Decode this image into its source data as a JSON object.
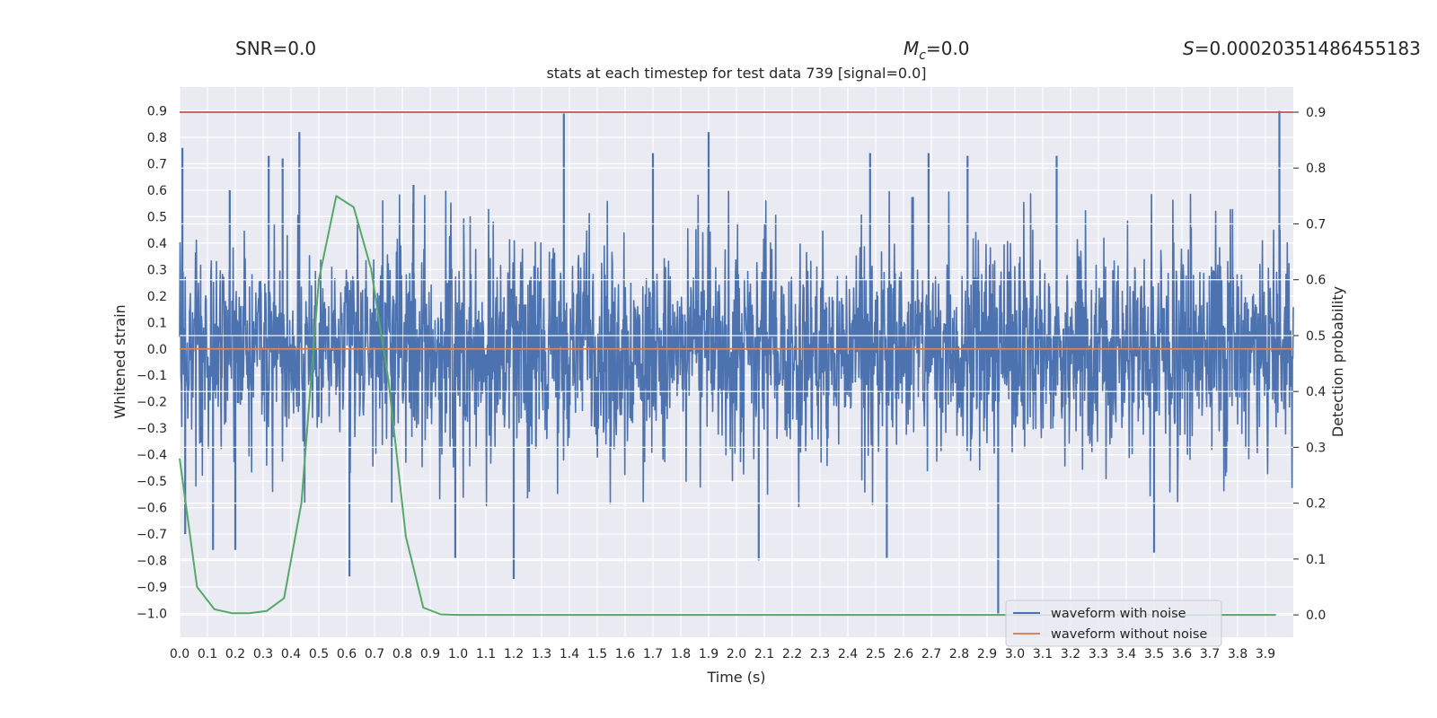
{
  "header": {
    "snr": "SNR=0.0",
    "mc_symbol": "M",
    "mc_sub": "c",
    "mc_value": "=0.0",
    "s_symbol": "S",
    "s_value": "=0.00020351486455183"
  },
  "colors": {
    "background": "#eaeaf2",
    "grid": "#ffffff",
    "noise": "#4c72b0",
    "clean": "#dd8452",
    "probability": "#55a868",
    "threshold": "#c44e52"
  },
  "chart_data": {
    "type": "line",
    "title": "stats at each timestep for test data 739 [signal=0.0]",
    "xlabel": "Time (s)",
    "ylabel": "Whitened strain",
    "y2label": "Detection probability",
    "xlim": [
      0.0,
      4.0
    ],
    "ylim": [
      -1.09,
      0.99
    ],
    "y2lim": [
      -0.04,
      0.945
    ],
    "x_ticks": [
      "0.0",
      "0.1",
      "0.2",
      "0.3",
      "0.4",
      "0.5",
      "0.6",
      "0.7",
      "0.8",
      "0.9",
      "1.0",
      "1.1",
      "1.2",
      "1.3",
      "1.4",
      "1.5",
      "1.6",
      "1.7",
      "1.8",
      "1.9",
      "2.0",
      "2.1",
      "2.2",
      "2.3",
      "2.4",
      "2.5",
      "2.6",
      "2.7",
      "2.8",
      "2.9",
      "3.0",
      "3.1",
      "3.2",
      "3.3",
      "3.4",
      "3.5",
      "3.6",
      "3.7",
      "3.8",
      "3.9"
    ],
    "y_ticks": [
      "0.9",
      "0.8",
      "0.7",
      "0.6",
      "0.5",
      "0.4",
      "0.3",
      "0.2",
      "0.1",
      "0.0",
      "−0.1",
      "−0.2",
      "−0.3",
      "−0.4",
      "−0.5",
      "−0.6",
      "−0.7",
      "−0.8",
      "−0.9",
      "−1.0"
    ],
    "y2_ticks": [
      "0.9",
      "0.8",
      "0.7",
      "0.6",
      "0.5",
      "0.4",
      "0.3",
      "0.2",
      "0.1",
      "0.0"
    ],
    "grid": true,
    "legend_position": "lower-right",
    "series": [
      {
        "name": "waveform with noise",
        "axis": "left",
        "peaks": [
          {
            "x": 0.01,
            "y": 0.76
          },
          {
            "x": 0.02,
            "y": -0.7
          },
          {
            "x": 0.12,
            "y": -0.76
          },
          {
            "x": 0.18,
            "y": 0.6
          },
          {
            "x": 0.2,
            "y": -0.76
          },
          {
            "x": 0.32,
            "y": 0.73
          },
          {
            "x": 0.37,
            "y": 0.72
          },
          {
            "x": 0.43,
            "y": 0.82
          },
          {
            "x": 0.61,
            "y": -0.86
          },
          {
            "x": 0.84,
            "y": 0.62
          },
          {
            "x": 0.99,
            "y": -0.79
          },
          {
            "x": 1.2,
            "y": -0.87
          },
          {
            "x": 1.38,
            "y": 0.89
          },
          {
            "x": 1.7,
            "y": 0.74
          },
          {
            "x": 1.9,
            "y": 0.82
          },
          {
            "x": 2.08,
            "y": -0.8
          },
          {
            "x": 2.48,
            "y": 0.74
          },
          {
            "x": 2.54,
            "y": -0.79
          },
          {
            "x": 2.69,
            "y": 0.74
          },
          {
            "x": 2.83,
            "y": 0.73
          },
          {
            "x": 2.94,
            "y": -1.0
          },
          {
            "x": 3.15,
            "y": 0.73
          },
          {
            "x": 3.5,
            "y": -0.77
          },
          {
            "x": 3.95,
            "y": 0.9
          }
        ]
      },
      {
        "name": "waveform without noise",
        "axis": "left",
        "x": [
          0.0,
          4.0
        ],
        "y": [
          0.0,
          0.0
        ]
      },
      {
        "name": "detection probability",
        "axis": "right",
        "x": [
          0.0,
          0.0625,
          0.125,
          0.1875,
          0.25,
          0.3125,
          0.375,
          0.4375,
          0.5,
          0.5625,
          0.625,
          0.6875,
          0.75,
          0.8125,
          0.875,
          0.9375,
          1.0,
          1.5,
          2.0,
          2.5,
          3.0,
          3.5,
          3.9375
        ],
        "y": [
          0.28,
          0.05,
          0.01,
          0.003,
          0.003,
          0.007,
          0.03,
          0.2,
          0.6,
          0.75,
          0.73,
          0.62,
          0.42,
          0.14,
          0.013,
          0.001,
          0.0,
          0.0,
          0.0,
          0.0,
          0.0,
          0.0,
          0.0
        ]
      },
      {
        "name": "threshold",
        "axis": "right",
        "x": [
          0.0,
          4.0
        ],
        "y": [
          0.9,
          0.9
        ]
      }
    ]
  }
}
